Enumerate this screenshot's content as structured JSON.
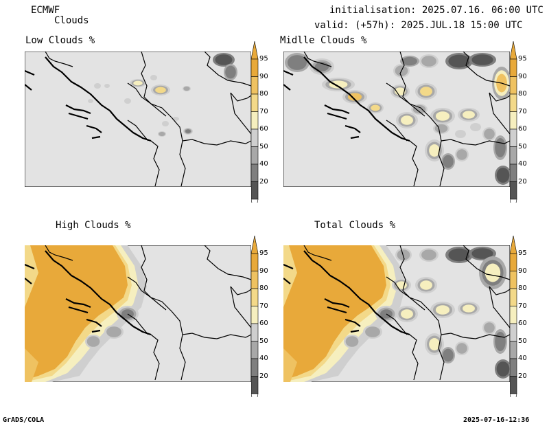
{
  "header": {
    "model": "ECMWF",
    "field": "Clouds",
    "init": "initialisation: 2025.07.16. 06:00 UTC",
    "valid": "valid: (+57h): 2025.JUL.18 15:00 UTC"
  },
  "panels": [
    {
      "id": "low",
      "title": "Low Clouds %"
    },
    {
      "id": "mid",
      "title": "Midlle Clouds %"
    },
    {
      "id": "high",
      "title": "High Clouds %"
    },
    {
      "id": "total",
      "title": "Total Clouds %"
    }
  ],
  "colorbar": {
    "levels": [
      "95",
      "90",
      "80",
      "70",
      "60",
      "50",
      "40",
      "20"
    ],
    "colors": {
      "c95": "#e8a93a",
      "c90": "#efc261",
      "c80": "#f3d989",
      "c70": "#f6efbf",
      "c60": "#cfcfcf",
      "c50": "#a8a8a8",
      "c40": "#7f7f7f",
      "c20": "#555555",
      "below": "#ffffff"
    }
  },
  "map_colors": {
    "background": "#e3e3e3",
    "border": "#000000"
  },
  "footer": {
    "left": "GrADS/COLA",
    "right": "2025-07-16-12:36"
  }
}
